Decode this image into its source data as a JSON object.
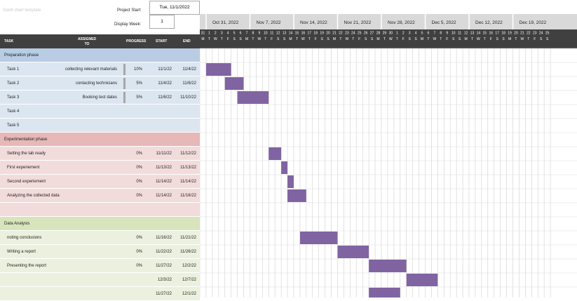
{
  "top": {
    "faint_title": "Gantt chart template",
    "project_start_label": "Project Start:",
    "project_start_value": "Tue, 11/1/2022",
    "display_week_label": "Display Week:",
    "display_week_value": "1"
  },
  "columns": {
    "task": "TASK",
    "assigned": "ASSIGNED TO",
    "progress": "PROGRESS",
    "start": "START",
    "end": "END"
  },
  "weeks": [
    "Oct 31, 2022",
    "Nov 7, 2022",
    "Nov 14, 2022",
    "Nov 21, 2022",
    "Nov 28, 2022",
    "Dec 5, 2022",
    "Dec 12, 2022",
    "Dec 19, 2022"
  ],
  "day_numbers": [
    "31",
    "1",
    "2",
    "3",
    "4",
    "5",
    "6",
    "7",
    "8",
    "9",
    "10",
    "11",
    "12",
    "13",
    "14",
    "15",
    "16",
    "17",
    "18",
    "19",
    "20",
    "21",
    "22",
    "23",
    "24",
    "25",
    "26",
    "27",
    "28",
    "29",
    "30",
    "1",
    "2",
    "3",
    "4",
    "5",
    "6",
    "7",
    "8",
    "9",
    "10",
    "11",
    "12",
    "13",
    "14",
    "15",
    "16",
    "17",
    "18",
    "19",
    "20",
    "21",
    "22",
    "23",
    "24",
    "25"
  ],
  "day_letters": [
    "M",
    "T",
    "W",
    "T",
    "F",
    "S",
    "S",
    "M",
    "T",
    "W",
    "T",
    "F",
    "S",
    "S",
    "M",
    "T",
    "W",
    "T",
    "F",
    "S",
    "S",
    "M",
    "T",
    "W",
    "T",
    "F",
    "S",
    "S",
    "M",
    "T",
    "W",
    "T",
    "F",
    "S",
    "S",
    "M",
    "T",
    "W",
    "T",
    "F",
    "S",
    "S",
    "M",
    "T",
    "W",
    "T",
    "F",
    "S",
    "S",
    "M",
    "T",
    "W",
    "T",
    "F",
    "S",
    "S"
  ],
  "colors": {
    "phase_blue": "#b8cce4",
    "row_blue": "#dce6f1",
    "phase_red": "#e6b8b7",
    "row_red": "#f2dcdb",
    "phase_green": "#d8e4bc",
    "row_green": "#ebf1de",
    "bar": "#8064a2",
    "header": "#404040"
  },
  "rows": [
    {
      "type": "phase",
      "tone": "blue",
      "task": "Preparation phase",
      "assigned": "",
      "progress": "",
      "start": "",
      "end": ""
    },
    {
      "type": "task",
      "tone": "blue",
      "task": "Task 1",
      "assigned": "collecting relevant materials",
      "progress": "10%",
      "start": "11/1/22",
      "end": "11/4/22",
      "bar": [
        1,
        4
      ]
    },
    {
      "type": "task",
      "tone": "blue",
      "task": "Task 2",
      "assigned": "contacting technicians",
      "progress": "5%",
      "start": "11/4/22",
      "end": "11/6/22",
      "bar": [
        4,
        6
      ]
    },
    {
      "type": "task",
      "tone": "blue",
      "task": "Task 3",
      "assigned": "Booking test dates",
      "progress": "5%",
      "start": "11/6/22",
      "end": "11/10/22",
      "bar": [
        6,
        10
      ]
    },
    {
      "type": "task",
      "tone": "blue",
      "task": "Task 4",
      "assigned": "",
      "progress": "",
      "start": "",
      "end": ""
    },
    {
      "type": "task",
      "tone": "blue",
      "task": "Task 5",
      "assigned": "",
      "progress": "",
      "start": "",
      "end": ""
    },
    {
      "type": "phase",
      "tone": "red",
      "task": "Experimentation phase",
      "assigned": "",
      "progress": "",
      "start": "",
      "end": ""
    },
    {
      "type": "task",
      "tone": "red",
      "task": "Setting the lab ready",
      "assigned": "",
      "progress": "0%",
      "start": "11/11/22",
      "end": "11/12/22",
      "bar": [
        11,
        12
      ]
    },
    {
      "type": "task",
      "tone": "red",
      "task": "First experiement",
      "assigned": "",
      "progress": "0%",
      "start": "11/13/22",
      "end": "11/13/22",
      "bar": [
        13,
        13
      ]
    },
    {
      "type": "task",
      "tone": "red",
      "task": "Second experiement",
      "assigned": "",
      "progress": "0%",
      "start": "11/14/22",
      "end": "11/14/22",
      "bar": [
        14,
        14
      ]
    },
    {
      "type": "task",
      "tone": "red",
      "task": "Analyzing the collected data",
      "assigned": "",
      "progress": "0%",
      "start": "11/14/22",
      "end": "11/16/22",
      "bar": [
        14,
        16
      ]
    },
    {
      "type": "task",
      "tone": "red",
      "task": "",
      "assigned": "",
      "progress": "",
      "start": "",
      "end": ""
    },
    {
      "type": "phase",
      "tone": "green",
      "task": "Data Analysis",
      "assigned": "",
      "progress": "",
      "start": "",
      "end": ""
    },
    {
      "type": "task",
      "tone": "green",
      "task": "noting conclusions",
      "assigned": "",
      "progress": "0%",
      "start": "11/16/22",
      "end": "11/21/22",
      "bar": [
        16,
        21
      ]
    },
    {
      "type": "task",
      "tone": "green",
      "task": "Writing a report",
      "assigned": "",
      "progress": "0%",
      "start": "11/22/22",
      "end": "11/26/22",
      "bar": [
        22,
        26
      ]
    },
    {
      "type": "task",
      "tone": "green",
      "task": "Presenting the report",
      "assigned": "",
      "progress": "0%",
      "start": "11/27/22",
      "end": "12/2/22",
      "bar": [
        27,
        32
      ]
    },
    {
      "type": "task",
      "tone": "green",
      "task": "",
      "assigned": "",
      "progress": "",
      "start": "12/3/22",
      "end": "12/7/22",
      "bar": [
        33,
        37
      ]
    },
    {
      "type": "task",
      "tone": "green",
      "task": "",
      "assigned": "",
      "progress": "",
      "start": "11/27/22",
      "end": "12/1/22",
      "bar": [
        27,
        31
      ]
    }
  ]
}
